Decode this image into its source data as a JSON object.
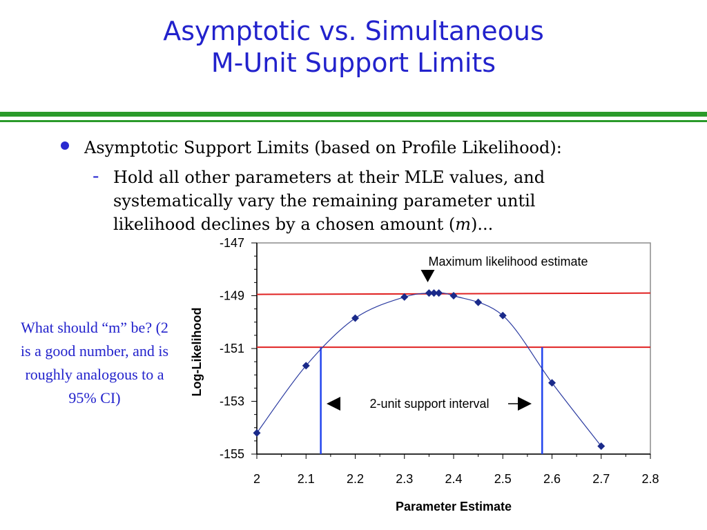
{
  "slide": {
    "title_line1": "Asymptotic vs. Simultaneous",
    "title_line2": "M-Unit Support Limits",
    "bullet1": "Asymptotic Support Limits (based on Profile Likelihood):",
    "sub_bullet_text": "Hold all other parameters at their MLE values, and systematically vary the remaining parameter until likelihood declines by a chosen amount (",
    "sub_bullet_m": "m",
    "sub_bullet_end": ")...",
    "side_note": "What should “m” be?   (2 is a good number, and is roughly analogous to a 95% CI)",
    "colors": {
      "title": "#2222cc",
      "rule": "#2a9a2a",
      "bullet": "#2a2ad0",
      "note": "#2222cc"
    }
  },
  "chart_data": {
    "type": "scatter",
    "xlabel": "Parameter Estimate",
    "ylabel": "Log-Likelihood",
    "xlim": [
      2,
      2.8
    ],
    "ylim": [
      -155,
      -147
    ],
    "xticks": [
      "2",
      "2.1",
      "2.2",
      "2.3",
      "2.4",
      "2.5",
      "2.6",
      "2.7",
      "2.8"
    ],
    "yticks": [
      "-147",
      "-149",
      "-151",
      "-153",
      "-155"
    ],
    "points": {
      "x": [
        2.0,
        2.1,
        2.2,
        2.3,
        2.35,
        2.36,
        2.37,
        2.4,
        2.45,
        2.5,
        2.6,
        2.7
      ],
      "y": [
        -154.2,
        -151.65,
        -149.85,
        -149.05,
        -148.9,
        -148.9,
        -148.9,
        -149.0,
        -149.25,
        -149.75,
        -152.3,
        -154.7
      ]
    },
    "curve": {
      "x": [
        2.0,
        2.1,
        2.2,
        2.3,
        2.36,
        2.4,
        2.5,
        2.6,
        2.7
      ],
      "y": [
        -154.2,
        -151.65,
        -149.85,
        -149.05,
        -148.9,
        -149.0,
        -149.75,
        -152.3,
        -154.7
      ]
    },
    "reference_lines": [
      {
        "name": "max",
        "y_start": -148.95,
        "y_end": -148.9
      },
      {
        "name": "max-2",
        "y": -150.95
      }
    ],
    "support_limits": [
      2.13,
      2.58
    ],
    "annotations": {
      "mle_label": "Maximum likelihood estimate",
      "mle_x": 2.36,
      "interval_label": "2-unit support interval"
    },
    "colors": {
      "points": "#1a2a8a",
      "curve": "#2a3aa0",
      "ref_line": "#e02020",
      "limit_line": "#2244ee"
    }
  }
}
